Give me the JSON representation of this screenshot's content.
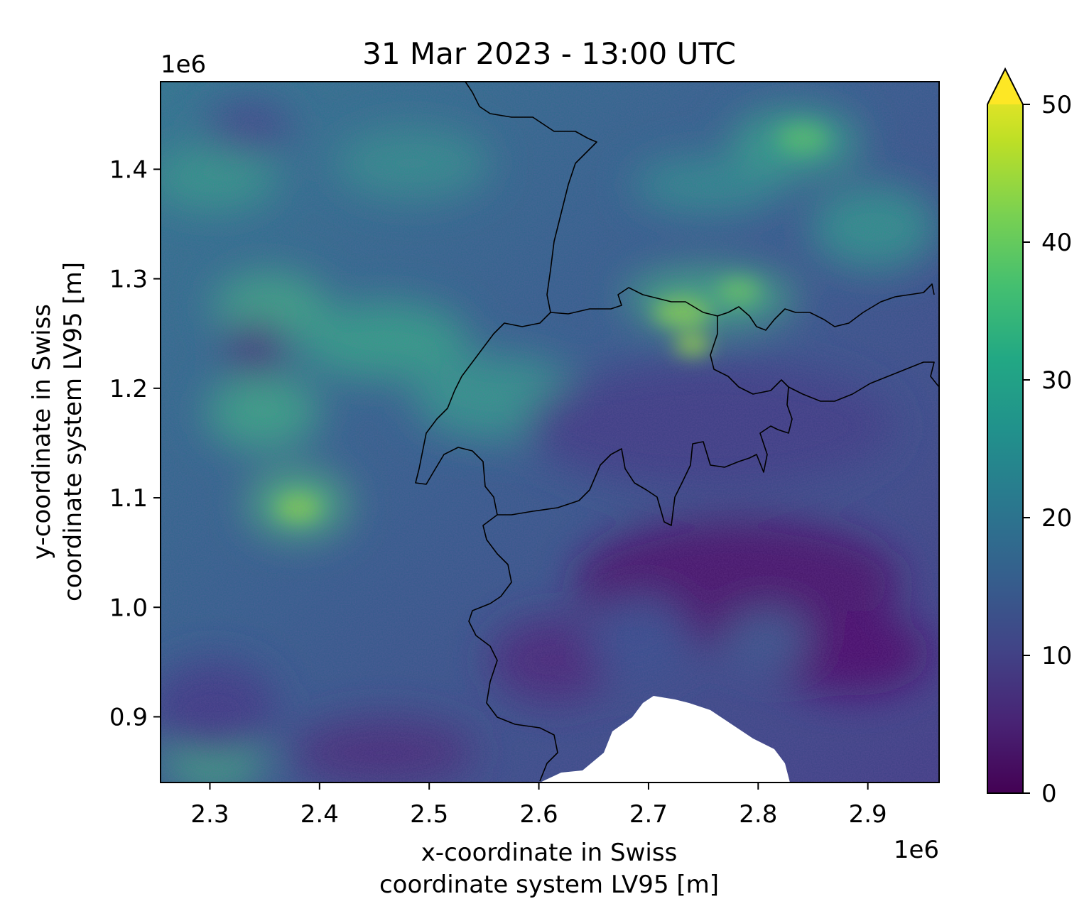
{
  "figure": {
    "title": "31 Mar 2023 - 13:00 UTC",
    "x_axis": {
      "label_lines": [
        "x-coordinate in Swiss",
        "coordinate system LV95 [m]"
      ],
      "offset_text": "1e6",
      "ticks": [
        2.3,
        2.4,
        2.5,
        2.6,
        2.7,
        2.8,
        2.9
      ],
      "tick_labels": [
        "2.3",
        "2.4",
        "2.5",
        "2.6",
        "2.7",
        "2.8",
        "2.9"
      ],
      "range": [
        2.255,
        2.965
      ]
    },
    "y_axis": {
      "label_lines": [
        "y-coordinate in Swiss",
        "coordinate system LV95 [m]"
      ],
      "offset_text": "1e6",
      "ticks": [
        0.9,
        1.0,
        1.1,
        1.2,
        1.3,
        1.4
      ],
      "tick_labels": [
        "0.9",
        "1.0",
        "1.1",
        "1.2",
        "1.3",
        "1.4"
      ],
      "range": [
        0.84,
        1.48
      ]
    },
    "colorbar": {
      "colormap": "viridis",
      "range": [
        0,
        50
      ],
      "extend": "max",
      "ticks": [
        0,
        10,
        20,
        30,
        40,
        50
      ],
      "tick_labels": [
        "0",
        "10",
        "20",
        "30",
        "40",
        "50"
      ],
      "colors": [
        "#440154",
        "#482475",
        "#414487",
        "#355f8d",
        "#2a788e",
        "#21918c",
        "#22a884",
        "#44bf70",
        "#7ad151",
        "#bddf26",
        "#fde725"
      ]
    },
    "map": {
      "field": "gridded raster over Switzerland and neighbouring regions",
      "no_data_color": "#ffffff",
      "border_color": "#000000"
    }
  }
}
